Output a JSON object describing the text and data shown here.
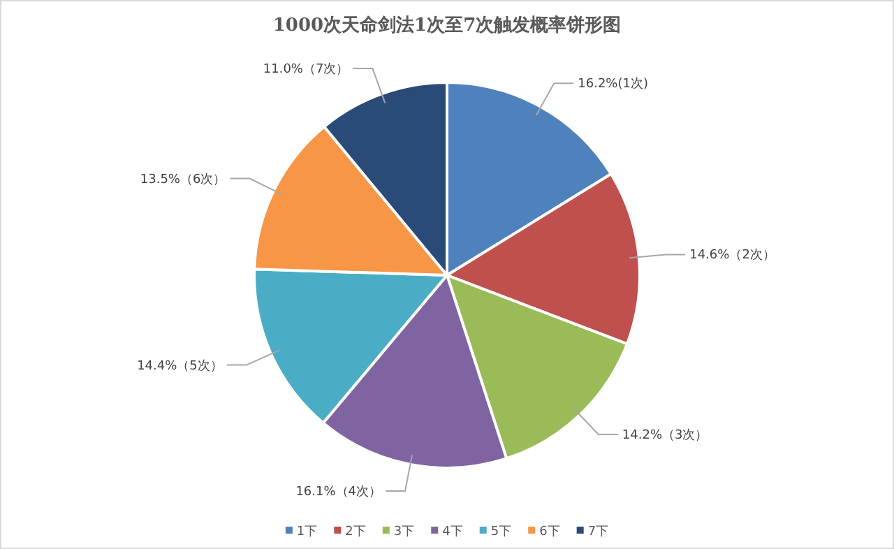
{
  "chart_data": {
    "type": "pie",
    "title": "1000次天命剑法1次至7次触发概率饼形图",
    "categories": [
      "1下",
      "2下",
      "3下",
      "4下",
      "5下",
      "6下",
      "7下"
    ],
    "values": [
      16.2,
      14.6,
      14.2,
      16.1,
      14.4,
      13.5,
      11.0
    ],
    "colors": [
      "#4f81bd",
      "#c0504d",
      "#9bbb59",
      "#8064a2",
      "#4bacc6",
      "#f79646",
      "#2a4a78"
    ],
    "value_labels": [
      "16.2%(1次)",
      "14.6%（2次）",
      "14.2%（3次）",
      "16.1%（4次）",
      "14.4%（5次）",
      "13.5%（6次）",
      "11.0%（7次）"
    ],
    "legend": "bottom"
  }
}
